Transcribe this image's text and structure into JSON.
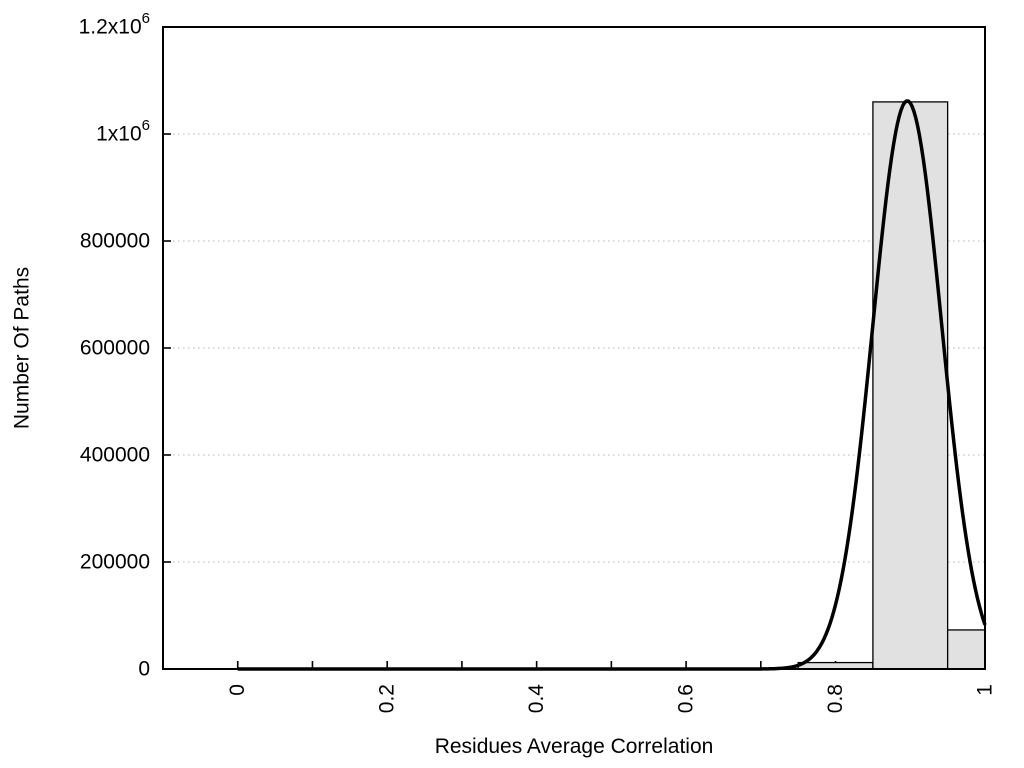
{
  "figure": {
    "background": "#ffffff",
    "frame_color": "#000000",
    "grid_color": "#c6c6c6",
    "tick_color": "#000000",
    "text_color": "#000000"
  },
  "chart_data": {
    "type": "bar",
    "subtype": "histogram-with-gaussian-fit",
    "title": "",
    "xlabel": "Residues Average Correlation",
    "ylabel": "Number Of Paths",
    "xlim": [
      -0.1,
      1.0
    ],
    "ylim": [
      0,
      1200000
    ],
    "grid": "horizontal dotted lines at labeled y ticks",
    "legend": "none",
    "bar_fill": "#e1e1e1",
    "bar_stroke": "#000000",
    "curve_color": "#000000",
    "xticks": [
      {
        "v": 0.0,
        "label": "0"
      },
      {
        "v": 0.1,
        "label": ""
      },
      {
        "v": 0.2,
        "label": "0.2"
      },
      {
        "v": 0.3,
        "label": ""
      },
      {
        "v": 0.4,
        "label": "0.4"
      },
      {
        "v": 0.5,
        "label": ""
      },
      {
        "v": 0.6,
        "label": "0.6"
      },
      {
        "v": 0.7,
        "label": ""
      },
      {
        "v": 0.8,
        "label": "0.8"
      },
      {
        "v": 0.9,
        "label": ""
      },
      {
        "v": 1.0,
        "label": "1"
      }
    ],
    "xtick_label_rotation_deg": -90,
    "yticks": [
      {
        "v": 0,
        "label": "0",
        "sup": ""
      },
      {
        "v": 200000,
        "label": "200000",
        "sup": ""
      },
      {
        "v": 400000,
        "label": "400000",
        "sup": ""
      },
      {
        "v": 600000,
        "label": "600000",
        "sup": ""
      },
      {
        "v": 800000,
        "label": "800000",
        "sup": ""
      },
      {
        "v": 1000000,
        "label": "1x10",
        "sup": "6"
      },
      {
        "v": 1200000,
        "label": "1.2x10",
        "sup": "6"
      }
    ],
    "grid_y_values": [
      200000,
      400000,
      600000,
      800000,
      1000000
    ],
    "bars": [
      {
        "x0": 0.75,
        "x1": 0.85,
        "value": 12000
      },
      {
        "x0": 0.85,
        "x1": 0.95,
        "value": 1060000
      },
      {
        "x0": 0.95,
        "x1": 1.0,
        "value": 73000
      }
    ],
    "fit_curve": {
      "model": "gaussian",
      "amplitude": 1062000,
      "mean": 0.896,
      "sigma": 0.046,
      "x_start": 0.0,
      "x_end": 1.0,
      "value_at_x_end": 80000
    }
  }
}
